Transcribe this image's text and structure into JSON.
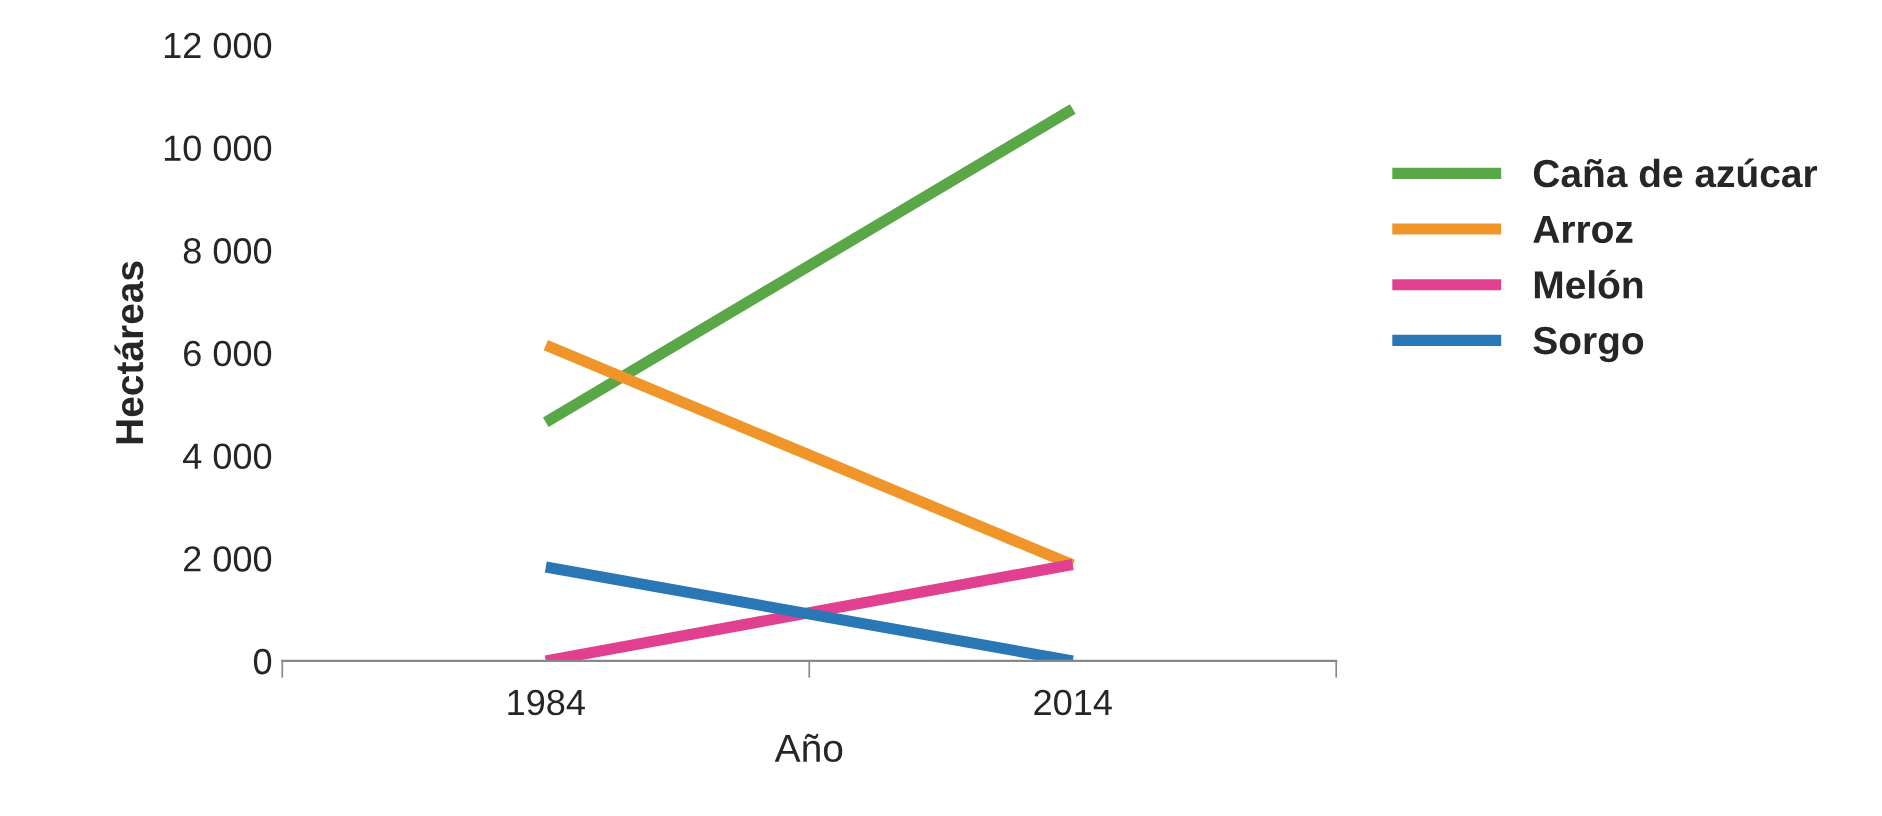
{
  "chart_data": {
    "type": "line",
    "xlabel": "Año",
    "ylabel": "Hectáreas",
    "categories": [
      "1984",
      "2014"
    ],
    "series": [
      {
        "name": "Caña de azúcar",
        "color": "#5aa747",
        "values": [
          4650,
          10750
        ]
      },
      {
        "name": "Arroz",
        "color": "#f0952a",
        "values": [
          6150,
          1870
        ]
      },
      {
        "name": "Melón",
        "color": "#e0408f",
        "values": [
          0,
          1880
        ]
      },
      {
        "name": "Sorgo",
        "color": "#2a77b6",
        "values": [
          1830,
          0
        ]
      }
    ],
    "ylim": [
      0,
      12000
    ],
    "yticks": [
      {
        "value": 0,
        "label": "0"
      },
      {
        "value": 2000,
        "label": "2 000"
      },
      {
        "value": 4000,
        "label": "4 000"
      },
      {
        "value": 6000,
        "label": "6 000"
      },
      {
        "value": 8000,
        "label": "8 000"
      },
      {
        "value": 10000,
        "label": "10 000"
      },
      {
        "value": 12000,
        "label": "12 000"
      }
    ],
    "grid": false,
    "legend": "right",
    "marker": "none",
    "line_style": "solid"
  }
}
